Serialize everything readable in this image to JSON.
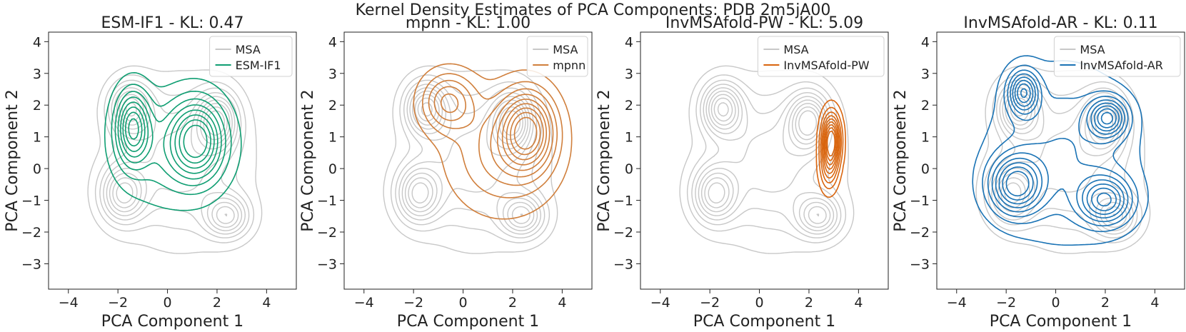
{
  "figure_title": "Kernel Density Estimates of PCA Components: PDB 2m5jA00",
  "colors": {
    "msa": "#c8c8c8",
    "esm": "#0f9e72",
    "mpnn": "#d07f3c",
    "pw": "#d9650e",
    "ar": "#1a73b5",
    "axis": "#222222"
  },
  "chart_data": [
    {
      "type": "contour",
      "title": "ESM-IF1 - KL: 0.47",
      "xlabel": "PCA Component 1",
      "ylabel": "PCA Component 2",
      "xlim": [
        -4.8,
        5.2
      ],
      "ylim": [
        -3.8,
        4.3
      ],
      "xticks": [
        "−4",
        "−2",
        "0",
        "2",
        "4"
      ],
      "yticks": [
        "−3",
        "−2",
        "−1",
        "0",
        "1",
        "2",
        "3",
        "4"
      ],
      "legend": [
        "MSA",
        "ESM-IF1"
      ],
      "legend_position": "top-right",
      "series": [
        {
          "name": "MSA",
          "color_key": "msa",
          "levels": 9,
          "components": [
            [
              -1.5,
              1.9,
              0.55,
              0.55,
              1.0
            ],
            [
              2.0,
              1.5,
              0.55,
              0.6,
              1.0
            ],
            [
              -1.8,
              -0.8,
              0.6,
              0.6,
              0.9
            ],
            [
              2.4,
              -1.5,
              0.6,
              0.45,
              0.8
            ],
            [
              0.5,
              0.2,
              1.6,
              1.5,
              0.55
            ]
          ]
        },
        {
          "name": "ESM-IF1",
          "color_key": "esm",
          "levels": 8,
          "components": [
            [
              -1.4,
              1.3,
              0.45,
              0.75,
              1.0
            ],
            [
              1.2,
              0.9,
              0.7,
              0.8,
              1.0
            ],
            [
              0.2,
              0.6,
              1.4,
              1.1,
              0.35
            ]
          ]
        }
      ]
    },
    {
      "type": "contour",
      "title": "mpnn - KL: 1.00",
      "xlabel": "PCA Component 1",
      "ylabel": "PCA Component 2",
      "xlim": [
        -4.8,
        5.2
      ],
      "ylim": [
        -3.8,
        4.3
      ],
      "xticks": [
        "−4",
        "−2",
        "0",
        "2",
        "4"
      ],
      "yticks": [
        "−3",
        "−2",
        "−1",
        "0",
        "1",
        "2",
        "3",
        "4"
      ],
      "legend": [
        "MSA",
        "mpnn"
      ],
      "legend_position": "top-right",
      "series": [
        {
          "name": "MSA",
          "color_key": "msa",
          "levels": 9,
          "components": [
            [
              -1.5,
              1.9,
              0.55,
              0.55,
              1.0
            ],
            [
              2.0,
              1.5,
              0.55,
              0.6,
              1.0
            ],
            [
              -1.8,
              -0.8,
              0.6,
              0.6,
              0.9
            ],
            [
              2.4,
              -1.5,
              0.6,
              0.45,
              0.8
            ],
            [
              0.5,
              0.2,
              1.6,
              1.5,
              0.55
            ]
          ]
        },
        {
          "name": "mpnn",
          "color_key": "mpnn",
          "levels": 9,
          "components": [
            [
              2.6,
              1.2,
              0.7,
              0.8,
              1.0
            ],
            [
              -0.6,
              2.1,
              0.7,
              0.6,
              0.6
            ],
            [
              1.6,
              0.5,
              1.4,
              1.2,
              0.4
            ]
          ]
        }
      ]
    },
    {
      "type": "contour",
      "title": "InvMSAfold-PW - KL: 5.09",
      "xlabel": "PCA Component 1",
      "ylabel": "PCA Component 2",
      "xlim": [
        -4.8,
        5.2
      ],
      "ylim": [
        -3.8,
        4.3
      ],
      "xticks": [
        "−4",
        "−2",
        "0",
        "2",
        "4"
      ],
      "yticks": [
        "−3",
        "−2",
        "−1",
        "0",
        "1",
        "2",
        "3",
        "4"
      ],
      "legend": [
        "MSA",
        "InvMSAfold-PW"
      ],
      "legend_position": "top-right",
      "series": [
        {
          "name": "MSA",
          "color_key": "msa",
          "levels": 9,
          "components": [
            [
              -1.5,
              1.9,
              0.55,
              0.55,
              1.0
            ],
            [
              2.0,
              1.5,
              0.55,
              0.6,
              1.0
            ],
            [
              -1.8,
              -0.8,
              0.6,
              0.6,
              0.9
            ],
            [
              2.4,
              -1.5,
              0.6,
              0.45,
              0.8
            ],
            [
              0.5,
              0.2,
              1.6,
              1.5,
              0.55
            ]
          ]
        },
        {
          "name": "InvMSAfold-PW",
          "color_key": "pw",
          "levels": 9,
          "components": [
            [
              2.9,
              0.9,
              0.25,
              0.55,
              1.0
            ],
            [
              2.8,
              0.0,
              0.25,
              0.5,
              0.35
            ]
          ]
        }
      ]
    },
    {
      "type": "contour",
      "title": "InvMSAfold-AR - KL: 0.11",
      "xlabel": "PCA Component 1",
      "ylabel": "PCA Component 2",
      "xlim": [
        -4.8,
        5.2
      ],
      "ylim": [
        -3.8,
        4.3
      ],
      "xticks": [
        "−4",
        "−2",
        "0",
        "2",
        "4"
      ],
      "yticks": [
        "−3",
        "−2",
        "−1",
        "0",
        "1",
        "2",
        "3",
        "4"
      ],
      "legend": [
        "MSA",
        "InvMSAfold-AR"
      ],
      "legend_position": "top-right",
      "series": [
        {
          "name": "MSA",
          "color_key": "msa",
          "levels": 9,
          "components": [
            [
              -1.5,
              1.9,
              0.55,
              0.55,
              1.0
            ],
            [
              2.0,
              1.5,
              0.55,
              0.6,
              1.0
            ],
            [
              -1.8,
              -0.8,
              0.6,
              0.6,
              0.9
            ],
            [
              2.4,
              -1.5,
              0.6,
              0.45,
              0.8
            ],
            [
              0.5,
              0.2,
              1.6,
              1.5,
              0.55
            ]
          ]
        },
        {
          "name": "InvMSAfold-AR",
          "color_key": "ar",
          "levels": 8,
          "components": [
            [
              -1.3,
              2.4,
              0.4,
              0.45,
              0.9
            ],
            [
              2.1,
              1.6,
              0.5,
              0.4,
              0.9
            ],
            [
              -1.6,
              -0.5,
              0.7,
              0.6,
              1.0
            ],
            [
              2.0,
              -1.0,
              0.7,
              0.5,
              0.9
            ],
            [
              0.3,
              0.5,
              1.8,
              1.7,
              0.35
            ]
          ]
        }
      ]
    }
  ]
}
